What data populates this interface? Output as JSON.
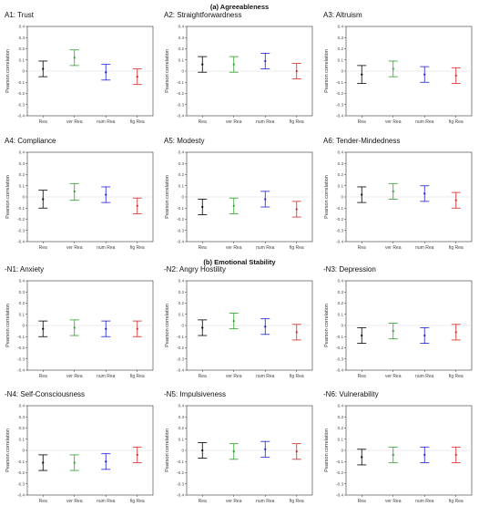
{
  "sections": [
    {
      "title": "(a) Agreeableness"
    },
    {
      "title": "(b) Emotional Stability"
    }
  ],
  "colors": {
    "Rea": "#000000",
    "ver Rea": "#2ca02c",
    "num Rea": "#1f1fd6",
    "fig Rea": "#d62728"
  },
  "chart_data": [
    {
      "type": "errorbar",
      "title": "A1: Trust",
      "ylabel": "Pearson correlation",
      "ylim": [
        -0.4,
        0.4
      ],
      "categories": [
        "Rea",
        "ver Rea",
        "num Rea",
        "fig Rea"
      ],
      "values": [
        0.02,
        0.12,
        -0.01,
        -0.05
      ],
      "lower": [
        -0.05,
        0.05,
        -0.08,
        -0.12
      ],
      "upper": [
        0.09,
        0.19,
        0.06,
        0.02
      ]
    },
    {
      "type": "errorbar",
      "title": "A2: Straightforwardness",
      "ylabel": "Pearson correlation",
      "ylim": [
        -0.4,
        0.4
      ],
      "categories": [
        "Rea",
        "ver Rea",
        "num Rea",
        "fig Rea"
      ],
      "values": [
        0.06,
        0.06,
        0.09,
        0.0
      ],
      "lower": [
        -0.01,
        -0.01,
        0.02,
        -0.07
      ],
      "upper": [
        0.13,
        0.13,
        0.16,
        0.07
      ]
    },
    {
      "type": "errorbar",
      "title": "A3: Altruism",
      "ylabel": "Pearson correlation",
      "ylim": [
        -0.4,
        0.4
      ],
      "categories": [
        "Rea",
        "ver Rea",
        "num Rea",
        "fig Rea"
      ],
      "values": [
        -0.03,
        0.02,
        -0.03,
        -0.04
      ],
      "lower": [
        -0.11,
        -0.05,
        -0.1,
        -0.11
      ],
      "upper": [
        0.05,
        0.09,
        0.04,
        0.03
      ]
    },
    {
      "type": "errorbar",
      "title": "A4: Compliance",
      "ylabel": "Pearson correlation",
      "ylim": [
        -0.4,
        0.4
      ],
      "categories": [
        "Rea",
        "ver Rea",
        "num Rea",
        "fig Rea"
      ],
      "values": [
        -0.02,
        0.05,
        0.02,
        -0.08
      ],
      "lower": [
        -0.1,
        -0.03,
        -0.05,
        -0.15
      ],
      "upper": [
        0.06,
        0.12,
        0.09,
        -0.01
      ]
    },
    {
      "type": "errorbar",
      "title": "A5: Modesty",
      "ylabel": "Pearson correlation",
      "ylim": [
        -0.4,
        0.4
      ],
      "categories": [
        "Rea",
        "ver Rea",
        "num Rea",
        "fig Rea"
      ],
      "values": [
        -0.09,
        -0.08,
        -0.02,
        -0.11
      ],
      "lower": [
        -0.16,
        -0.15,
        -0.09,
        -0.18
      ],
      "upper": [
        -0.02,
        -0.01,
        0.05,
        -0.04
      ]
    },
    {
      "type": "errorbar",
      "title": "A6: Tender-Mindedness",
      "ylabel": "Pearson correlation",
      "ylim": [
        -0.4,
        0.4
      ],
      "categories": [
        "Rea",
        "ver Rea",
        "num Rea",
        "fig Rea"
      ],
      "values": [
        0.02,
        0.05,
        0.03,
        -0.03
      ],
      "lower": [
        -0.05,
        -0.02,
        -0.04,
        -0.1
      ],
      "upper": [
        0.09,
        0.12,
        0.1,
        0.04
      ]
    },
    {
      "type": "errorbar",
      "title": "-N1: Anxiety",
      "ylabel": "Pearson correlation",
      "ylim": [
        -0.4,
        0.4
      ],
      "categories": [
        "Rea",
        "ver Rea",
        "num Rea",
        "fig Rea"
      ],
      "values": [
        -0.03,
        -0.02,
        -0.03,
        -0.03
      ],
      "lower": [
        -0.1,
        -0.09,
        -0.1,
        -0.1
      ],
      "upper": [
        0.04,
        0.05,
        0.04,
        0.04
      ]
    },
    {
      "type": "errorbar",
      "title": "-N2: Angry Hostility",
      "ylabel": "Pearson correlation",
      "ylim": [
        -0.4,
        0.4
      ],
      "categories": [
        "Rea",
        "ver Rea",
        "num Rea",
        "fig Rea"
      ],
      "values": [
        -0.02,
        0.04,
        -0.01,
        -0.06
      ],
      "lower": [
        -0.09,
        -0.03,
        -0.08,
        -0.13
      ],
      "upper": [
        0.05,
        0.11,
        0.06,
        0.01
      ]
    },
    {
      "type": "errorbar",
      "title": "-N3: Depression",
      "ylabel": "Pearson correlation",
      "ylim": [
        -0.4,
        0.4
      ],
      "categories": [
        "Rea",
        "ver Rea",
        "num Rea",
        "fig Rea"
      ],
      "values": [
        -0.09,
        -0.05,
        -0.09,
        -0.06
      ],
      "lower": [
        -0.16,
        -0.12,
        -0.16,
        -0.13
      ],
      "upper": [
        -0.02,
        0.02,
        -0.02,
        0.01
      ]
    },
    {
      "type": "errorbar",
      "title": "-N4: Self-Consciousness",
      "ylabel": "Pearson correlation",
      "ylim": [
        -0.4,
        0.4
      ],
      "categories": [
        "Rea",
        "ver Rea",
        "num Rea",
        "fig Rea"
      ],
      "values": [
        -0.11,
        -0.11,
        -0.1,
        -0.04
      ],
      "lower": [
        -0.18,
        -0.18,
        -0.17,
        -0.11
      ],
      "upper": [
        -0.04,
        -0.04,
        -0.03,
        0.03
      ]
    },
    {
      "type": "errorbar",
      "title": "-N5: Impulsiveness",
      "ylabel": "Pearson correlation",
      "ylim": [
        -0.4,
        0.4
      ],
      "categories": [
        "Rea",
        "ver Rea",
        "num Rea",
        "fig Rea"
      ],
      "values": [
        0.0,
        -0.01,
        0.01,
        -0.01
      ],
      "lower": [
        -0.07,
        -0.08,
        -0.06,
        -0.08
      ],
      "upper": [
        0.07,
        0.06,
        0.08,
        0.06
      ]
    },
    {
      "type": "errorbar",
      "title": "-N6: Vulnerability",
      "ylabel": "Pearson correlation",
      "ylim": [
        -0.4,
        0.4
      ],
      "categories": [
        "Rea",
        "ver Rea",
        "num Rea",
        "fig Rea"
      ],
      "values": [
        -0.06,
        -0.04,
        -0.04,
        -0.04
      ],
      "lower": [
        -0.13,
        -0.11,
        -0.11,
        -0.11
      ],
      "upper": [
        0.01,
        0.03,
        0.03,
        0.03
      ]
    }
  ]
}
